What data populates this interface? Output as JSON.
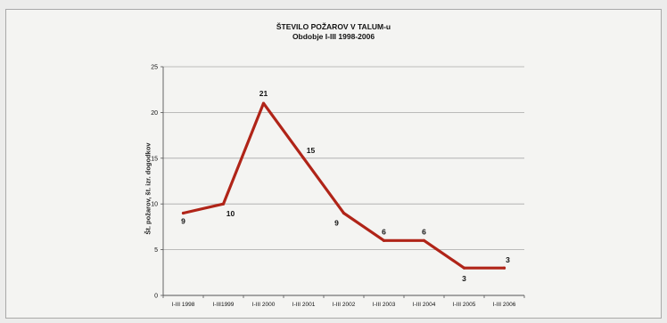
{
  "chart_data": {
    "type": "line",
    "title": "ŠTEVILO POŽAROV  V TALUM-u",
    "subtitle": "Obdobje I-III 1998-2006",
    "xlabel": "",
    "ylabel": "Št. požarov, št. izr. dogodkov",
    "categories": [
      "I-III 1998",
      "I-III1999",
      "I-III 2000",
      "I-III 2001",
      "I-III 2002",
      "I-III 2003",
      "I-III 2004",
      "I-III 2005",
      "I-III 2006"
    ],
    "values": [
      9,
      10,
      21,
      15,
      9,
      6,
      6,
      3,
      3
    ],
    "data_labels": [
      "9",
      "10",
      "21",
      "15",
      "9",
      "6",
      "6",
      "3",
      "3"
    ],
    "ylim": [
      0,
      25
    ],
    "yticks": [
      0,
      5,
      10,
      15,
      20,
      25
    ],
    "ytick_labels": [
      "0",
      "5",
      "10",
      "15",
      "20",
      "25"
    ],
    "grid": true,
    "legend": "none",
    "colors": {
      "line": "#b02418",
      "grid": "#a8a8a8",
      "axis": "#555555",
      "text": "#111111"
    }
  }
}
